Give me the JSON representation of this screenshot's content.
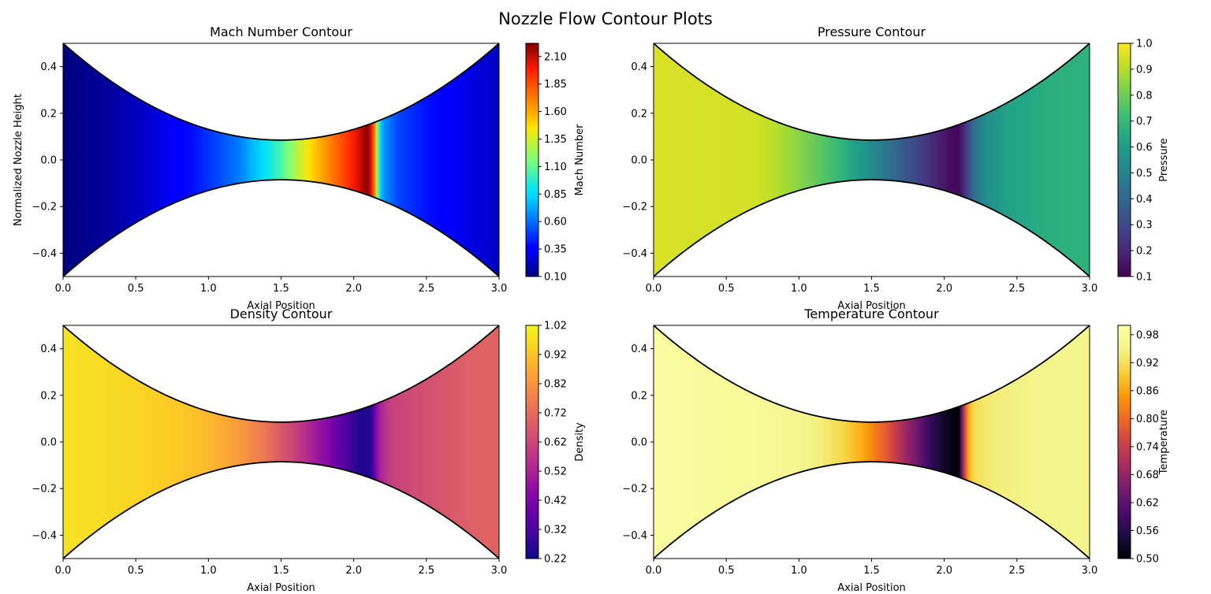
{
  "figure": {
    "title": "Nozzle Flow Contour Plots"
  },
  "chart_data": [
    {
      "type": "heatmap",
      "title": "Mach Number Contour",
      "xlabel": "Axial Position",
      "ylabel": "Normalized Nozzle Height",
      "xlim": [
        0,
        3
      ],
      "ylim": [
        -0.5,
        0.5
      ],
      "xticks": [
        "0.0",
        "0.5",
        "1.0",
        "1.5",
        "2.0",
        "2.5",
        "3.0"
      ],
      "yticks": [
        "−0.4",
        "−0.2",
        "0.0",
        "0.2",
        "0.4"
      ],
      "colormap": "jet",
      "colorbar": {
        "label": "Mach Number",
        "min": 0.1,
        "max": 2.22,
        "ticks": [
          "0.10",
          "0.35",
          "0.60",
          "0.85",
          "1.10",
          "1.35",
          "1.60",
          "1.85",
          "2.10"
        ]
      },
      "wall": "y = ±(0.085 + 0.415·((x−1.5)/1.5)^2)",
      "profile": {
        "x": [
          0.0,
          0.3,
          0.6,
          0.9,
          1.2,
          1.35,
          1.5,
          1.65,
          1.8,
          1.95,
          2.03,
          2.08,
          2.11,
          2.14,
          2.17,
          2.2,
          2.3,
          2.5,
          2.75,
          3.0
        ],
        "values": [
          0.1,
          0.15,
          0.25,
          0.4,
          0.62,
          0.82,
          1.05,
          1.38,
          1.65,
          1.9,
          2.05,
          2.18,
          2.18,
          1.75,
          1.0,
          0.7,
          0.52,
          0.4,
          0.3,
          0.22
        ]
      }
    },
    {
      "type": "heatmap",
      "title": "Pressure Contour",
      "xlabel": "Axial Position",
      "ylabel": "",
      "xlim": [
        0,
        3
      ],
      "ylim": [
        -0.5,
        0.5
      ],
      "xticks": [
        "0.0",
        "0.5",
        "1.0",
        "1.5",
        "2.0",
        "2.5",
        "3.0"
      ],
      "yticks": [
        "−0.4",
        "−0.2",
        "0.0",
        "0.2",
        "0.4"
      ],
      "colormap": "viridis",
      "colorbar": {
        "label": "Pressure",
        "min": 0.1,
        "max": 1.0,
        "ticks": [
          "0.1",
          "0.2",
          "0.3",
          "0.4",
          "0.5",
          "0.6",
          "0.7",
          "0.8",
          "0.9",
          "1.0"
        ]
      },
      "wall": "y = ±(0.085 + 0.415·((x−1.5)/1.5)^2)",
      "profile": {
        "x": [
          0.0,
          0.7,
          0.85,
          1.0,
          1.15,
          1.3,
          1.45,
          1.6,
          1.75,
          1.9,
          2.05,
          2.1,
          2.15,
          2.2,
          2.3,
          2.45,
          2.7,
          3.0
        ],
        "values": [
          0.95,
          0.94,
          0.9,
          0.84,
          0.77,
          0.68,
          0.57,
          0.45,
          0.33,
          0.22,
          0.12,
          0.12,
          0.25,
          0.42,
          0.55,
          0.62,
          0.66,
          0.68
        ]
      }
    },
    {
      "type": "heatmap",
      "title": "Density Contour",
      "xlabel": "Axial Position",
      "ylabel": "",
      "xlim": [
        0,
        3
      ],
      "ylim": [
        -0.5,
        0.5
      ],
      "xticks": [
        "0.0",
        "0.5",
        "1.0",
        "1.5",
        "2.0",
        "2.5",
        "3.0"
      ],
      "yticks": [
        "−0.4",
        "−0.2",
        "0.0",
        "0.2",
        "0.4"
      ],
      "colormap": "plasma",
      "colorbar": {
        "label": "Density",
        "min": 0.22,
        "max": 1.02,
        "ticks": [
          "0.22",
          "0.32",
          "0.42",
          "0.52",
          "0.62",
          "0.72",
          "0.82",
          "0.92",
          "1.02"
        ]
      },
      "wall": "y = ±(0.085 + 0.415·((x−1.5)/1.5)^2)",
      "profile": {
        "x": [
          0.0,
          0.4,
          0.8,
          1.0,
          1.2,
          1.4,
          1.6,
          1.8,
          1.95,
          2.05,
          2.12,
          2.17,
          2.25,
          2.4,
          2.6,
          2.8,
          3.0
        ],
        "values": [
          0.98,
          0.96,
          0.93,
          0.9,
          0.84,
          0.74,
          0.6,
          0.45,
          0.32,
          0.24,
          0.26,
          0.5,
          0.6,
          0.63,
          0.66,
          0.69,
          0.7
        ]
      }
    },
    {
      "type": "heatmap",
      "title": "Temperature Contour",
      "xlabel": "Axial Position",
      "ylabel": "",
      "xlim": [
        0,
        3
      ],
      "ylim": [
        -0.5,
        0.5
      ],
      "xticks": [
        "0.0",
        "0.5",
        "1.0",
        "1.5",
        "2.0",
        "2.5",
        "3.0"
      ],
      "yticks": [
        "−0.4",
        "−0.2",
        "0.0",
        "0.2",
        "0.4"
      ],
      "colormap": "inferno",
      "colorbar": {
        "label": "Temperature",
        "min": 0.5,
        "max": 1.0,
        "ticks": [
          "0.50",
          "0.56",
          "0.62",
          "0.68",
          "0.74",
          "0.80",
          "0.86",
          "0.92",
          "0.98"
        ]
      },
      "wall": "y = ±(0.085 + 0.415·((x−1.5)/1.5)^2)",
      "profile": {
        "x": [
          0.0,
          0.65,
          0.85,
          1.0,
          1.15,
          1.3,
          1.45,
          1.6,
          1.75,
          1.9,
          2.02,
          2.1,
          2.13,
          2.17,
          2.22,
          2.35,
          2.6,
          3.0
        ],
        "values": [
          0.99,
          0.98,
          0.97,
          0.96,
          0.94,
          0.91,
          0.86,
          0.78,
          0.68,
          0.58,
          0.52,
          0.5,
          0.7,
          0.88,
          0.92,
          0.94,
          0.95,
          0.955
        ]
      }
    }
  ]
}
